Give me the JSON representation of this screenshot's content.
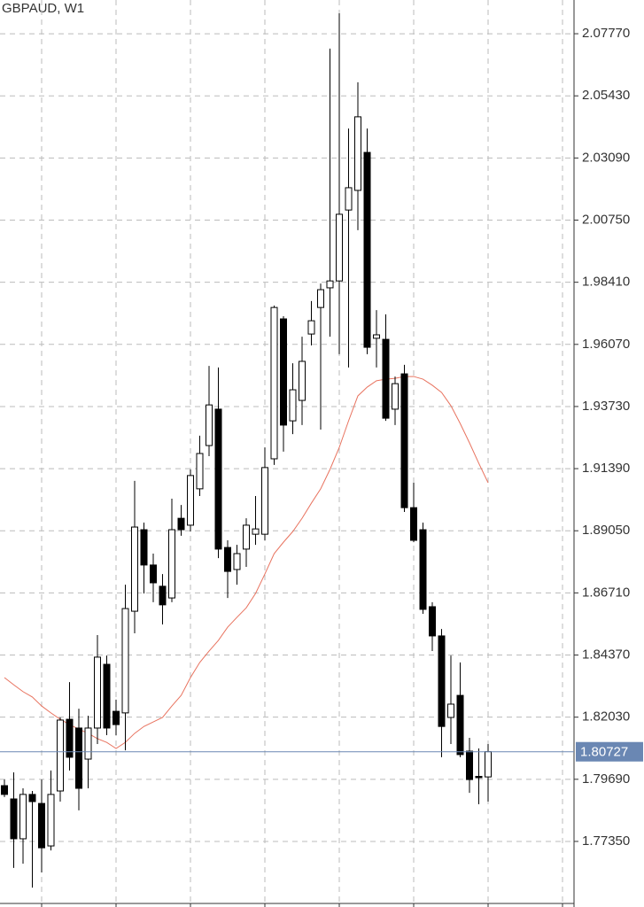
{
  "chart_data": {
    "type": "candlestick",
    "title": "GBPAUD, W1",
    "up_color": "#ffffff",
    "down_color": "#000000",
    "open": [
      1.7945,
      1.7895,
      1.7745,
      1.7912,
      1.7878,
      1.7718,
      1.7925,
      1.8195,
      1.8162,
      1.8045,
      1.8162,
      1.8402,
      1.8225,
      1.8219,
      1.8602,
      1.8909,
      1.8776,
      1.8696,
      1.8652,
      1.8952,
      1.8926,
      1.9063,
      1.9226,
      1.9363,
      1.8842,
      1.8759,
      1.8836,
      1.8892,
      1.8892,
      1.9176,
      1.9703,
      1.9319,
      1.9396,
      1.9646,
      1.9746,
      1.982,
      1.9846,
      2.0113,
      2.0187,
      2.033,
      1.963,
      1.9626,
      1.9363,
      1.9496,
      1.8992,
      1.8909,
      1.8619,
      1.8509,
      1.8202,
      1.8285,
      1.8075,
      1.798,
      1.7978
    ],
    "high": [
      1.7968,
      1.7995,
      1.7935,
      1.7925,
      1.7968,
      1.8002,
      1.8202,
      1.8335,
      1.8235,
      1.8208,
      1.8512,
      1.8435,
      1.8269,
      1.8702,
      1.9093,
      1.8936,
      1.8819,
      1.8742,
      1.9026,
      1.9002,
      1.9136,
      1.9263,
      1.9526,
      1.952,
      1.8869,
      1.8852,
      1.8952,
      1.9036,
      1.9219,
      1.9753,
      1.9713,
      1.9536,
      1.9636,
      1.977,
      1.9836,
      2.0721,
      2.0854,
      2.042,
      2.0594,
      2.042,
      1.9736,
      1.972,
      1.9486,
      1.953,
      1.9086,
      1.8936,
      1.8636,
      1.8535,
      1.8435,
      1.8409,
      1.8125,
      1.8085,
      1.8102
    ],
    "low": [
      1.7902,
      1.7635,
      1.7651,
      1.7561,
      1.7618,
      1.7701,
      1.7885,
      1.8002,
      1.7852,
      1.7935,
      1.8102,
      1.8135,
      1.8135,
      1.8078,
      1.8519,
      1.8669,
      1.8636,
      1.8552,
      1.8636,
      1.8886,
      1.8902,
      1.9036,
      1.9186,
      1.8802,
      1.8652,
      1.8702,
      1.8769,
      1.8852,
      1.8869,
      1.9153,
      1.9203,
      1.9269,
      1.9303,
      1.9603,
      1.9286,
      1.9636,
      1.957,
      1.952,
      2.0037,
      1.957,
      1.952,
      1.9319,
      1.9303,
      1.8976,
      1.8862,
      1.8592,
      1.8452,
      1.8052,
      1.8102,
      1.8052,
      1.7918,
      1.7875,
      1.7885
    ],
    "close": [
      1.7912,
      1.7745,
      1.7912,
      1.7885,
      1.7711,
      1.7912,
      1.8192,
      1.8052,
      1.7935,
      1.8162,
      1.8429,
      1.8162,
      1.8175,
      1.8612,
      1.8919,
      1.8776,
      1.8709,
      1.8626,
      1.8909,
      1.8909,
      1.9113,
      1.9196,
      1.9379,
      1.8836,
      1.8752,
      1.8819,
      1.8926,
      1.8912,
      1.9143,
      1.9746,
      1.9303,
      1.9436,
      1.9543,
      1.9696,
      1.9813,
      1.9846,
      2.0097,
      2.0197,
      2.0464,
      1.9596,
      1.9643,
      1.9329,
      1.9459,
      1.8992,
      1.8869,
      1.8609,
      1.8509,
      1.8168,
      1.8252,
      1.8062,
      1.7968,
      1.7975,
      1.8073
    ],
    "ma": {
      "color": "#e8735f",
      "values": [
        1.8352,
        1.8325,
        1.8299,
        1.8279,
        1.8245,
        1.8219,
        1.8195,
        1.8175,
        1.8158,
        1.8142,
        1.8122,
        1.8108,
        1.8085,
        1.8108,
        1.8142,
        1.8168,
        1.8185,
        1.8202,
        1.8245,
        1.8285,
        1.8352,
        1.8409,
        1.8452,
        1.8492,
        1.8542,
        1.8579,
        1.8615,
        1.8669,
        1.8742,
        1.8819,
        1.8862,
        1.8902,
        1.8952,
        1.9009,
        1.9063,
        1.9136,
        1.9219,
        1.9319,
        1.9413,
        1.9446,
        1.947,
        1.9476,
        1.9479,
        1.9486,
        1.9486,
        1.9476,
        1.9453,
        1.9426,
        1.9376,
        1.9309,
        1.9236,
        1.9159,
        1.9086
      ]
    },
    "current_price": {
      "value": 1.80727,
      "color": "#6a87b3"
    },
    "ylim": [
      1.7488,
      2.0904
    ],
    "yticks": [
      {
        "value": 2.0777,
        "label": "2.07770"
      },
      {
        "value": 2.0543,
        "label": "2.05430"
      },
      {
        "value": 2.0309,
        "label": "2.03090"
      },
      {
        "value": 2.0075,
        "label": "2.00750"
      },
      {
        "value": 1.9841,
        "label": "1.98410"
      },
      {
        "value": 1.9607,
        "label": "1.96070"
      },
      {
        "value": 1.9373,
        "label": "1.93730"
      },
      {
        "value": 1.9139,
        "label": "1.91390"
      },
      {
        "value": 1.8905,
        "label": "1.89050"
      },
      {
        "value": 1.8671,
        "label": "1.86710"
      },
      {
        "value": 1.8437,
        "label": "1.84370"
      },
      {
        "value": 1.8203,
        "label": "1.82030"
      },
      {
        "value": 1.7969,
        "label": "1.79690"
      },
      {
        "value": 1.7735,
        "label": "1.77350"
      }
    ],
    "grid": true
  }
}
